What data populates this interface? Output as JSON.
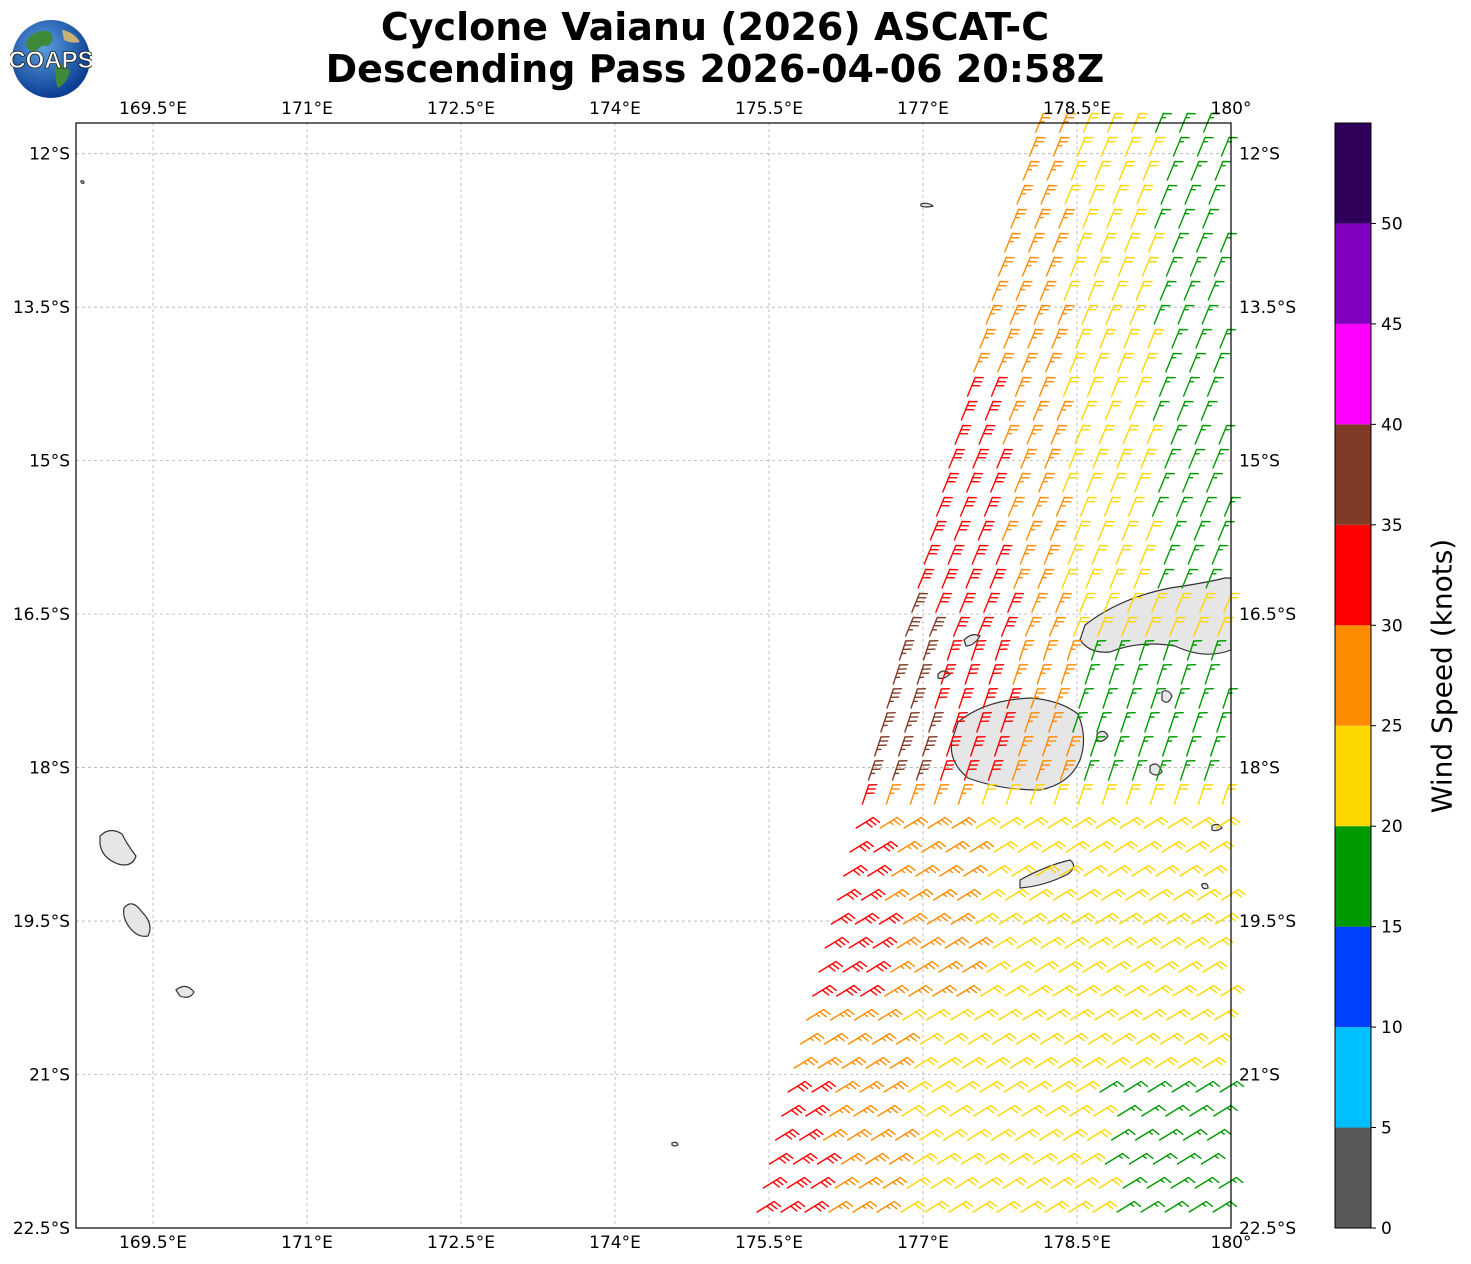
{
  "title_line1": "Cyclone Vaianu (2026) ASCAT-C",
  "title_line2": "Descending Pass 2026-04-06 20:58Z",
  "logo_text": "COAPS",
  "lon_ticks": [
    "169.5°E",
    "171°E",
    "172.5°E",
    "174°E",
    "175.5°E",
    "177°E",
    "178.5°E",
    "180°"
  ],
  "lat_ticks": [
    "12°S",
    "13.5°S",
    "15°S",
    "16.5°S",
    "18°S",
    "19.5°S",
    "21°S",
    "22.5°S"
  ],
  "colorbar": {
    "label": "Wind Speed (knots)",
    "ticks": [
      "0",
      "5",
      "10",
      "15",
      "20",
      "25",
      "30",
      "35",
      "40",
      "45",
      "50"
    ],
    "colors": [
      "#595959",
      "#00bfff",
      "#0040ff",
      "#009900",
      "#ffd700",
      "#ff8c00",
      "#ff0000",
      "#803b26",
      "#ff00ff",
      "#8000bf",
      "#2e0059"
    ]
  },
  "map_data": {
    "extent": {
      "lon": [
        168.75,
        180
      ],
      "lat": [
        -22.5,
        -11.7
      ]
    },
    "pass": "Descending",
    "instrument": "ASCAT-C"
  }
}
